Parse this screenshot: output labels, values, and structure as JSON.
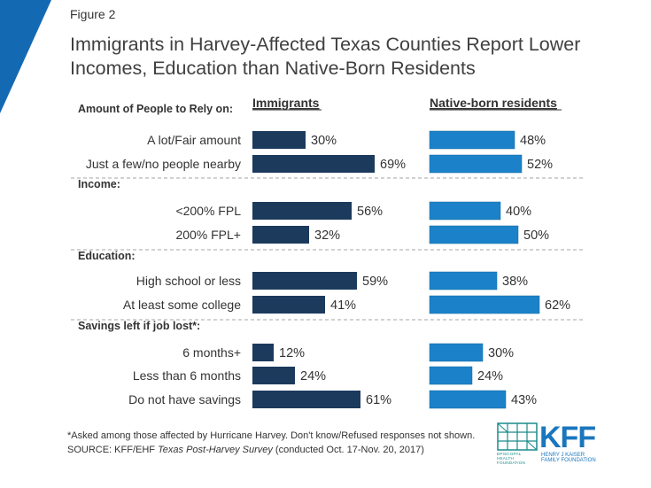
{
  "figure_label": "Figure 2",
  "title_line1": "Immigrants in Harvey-Affected Texas Counties Report Lower",
  "title_line2": "Incomes, Education than Native-Born Residents",
  "footnote": "*Asked among those affected by Hurricane Harvey.  Don't know/Refused responses not shown.",
  "source_prefix": "SOURCE: KFF/EHF ",
  "source_italic": "Texas Post-Harvey Survey",
  "source_suffix": " (conducted Oct. 17-Nov. 20, 2017)",
  "logo": {
    "brand": "KFF",
    "left_text": "EPISCOPAL HEALTH FOUNDATION",
    "right_text": "HENRY J KAISER FAMILY FOUNDATION"
  },
  "colors": {
    "immigrants": "#1b3a5c",
    "native": "#1b82c9",
    "accent": "#1469b3",
    "text": "#333333"
  },
  "chart_data": {
    "type": "bar",
    "orientation": "horizontal",
    "series": [
      {
        "name": "Immigrants",
        "color": "#1b3a5c"
      },
      {
        "name": "Native-born residents",
        "color": "#1b82c9"
      }
    ],
    "unit": "%",
    "xlim": [
      0,
      100
    ],
    "groups": [
      {
        "label": "Amount of People to Rely on:",
        "categories": [
          "A lot/Fair amount",
          "Just a few/no people nearby"
        ],
        "immigrants": [
          30,
          69
        ],
        "native": [
          48,
          52
        ]
      },
      {
        "label": "Income:",
        "categories": [
          "<200% FPL",
          "200% FPL+"
        ],
        "immigrants": [
          56,
          32
        ],
        "native": [
          40,
          50
        ]
      },
      {
        "label": "Education:",
        "categories": [
          "High school or less",
          "At least some college"
        ],
        "immigrants": [
          59,
          41
        ],
        "native": [
          38,
          62
        ]
      },
      {
        "label": "Savings left if job lost*:",
        "categories": [
          "6 months+",
          "Less than 6 months",
          "Do not have savings"
        ],
        "immigrants": [
          12,
          24,
          61
        ],
        "native": [
          30,
          24,
          43
        ]
      }
    ]
  }
}
